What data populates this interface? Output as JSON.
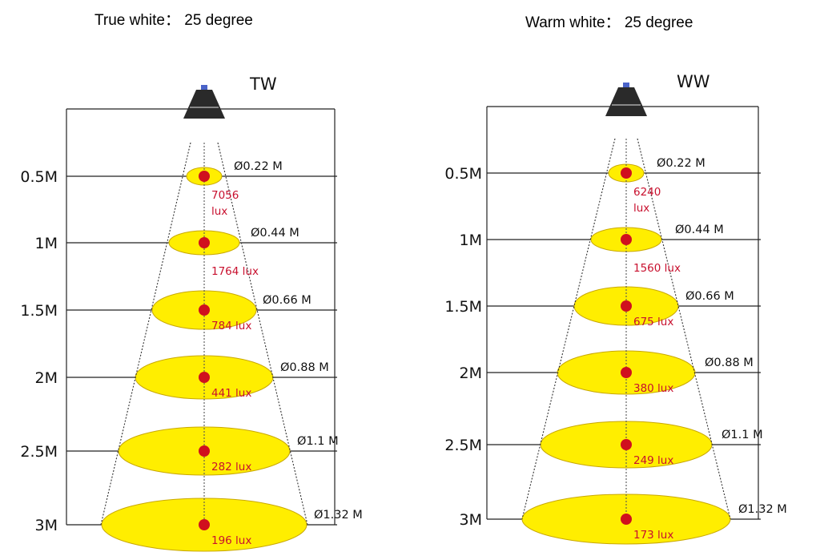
{
  "panels": [
    {
      "id": "tw",
      "title": "True white： 25 degree",
      "code": "TW",
      "rows": [
        {
          "distance": "0.5M",
          "diameter": "Ø0.22 M",
          "lux": [
            "7056",
            "lux"
          ]
        },
        {
          "distance": "1M",
          "diameter": "Ø0.44 M",
          "lux": [
            "1764 lux"
          ]
        },
        {
          "distance": "1.5M",
          "diameter": "Ø0.66 M",
          "lux": [
            "784 lux"
          ]
        },
        {
          "distance": "2M",
          "diameter": "Ø0.88 M",
          "lux": [
            "441 lux"
          ]
        },
        {
          "distance": "2.5M",
          "diameter": "Ø1.1 M",
          "lux": [
            "282 lux"
          ]
        },
        {
          "distance": "3M",
          "diameter": "Ø1.32 M",
          "lux": [
            "196 lux"
          ]
        }
      ]
    },
    {
      "id": "ww",
      "title": "Warm white： 25 degree",
      "code": "WW",
      "rows": [
        {
          "distance": "0.5M",
          "diameter": "Ø0.22 M",
          "lux": [
            "6240",
            "lux"
          ]
        },
        {
          "distance": "1M",
          "diameter": "Ø0.44 M",
          "lux": [
            "1560 lux"
          ]
        },
        {
          "distance": "1.5M",
          "diameter": "Ø0.66 M",
          "lux": [
            "675 lux"
          ]
        },
        {
          "distance": "2M",
          "diameter": "Ø0.88 M",
          "lux": [
            "380 lux"
          ]
        },
        {
          "distance": "2.5M",
          "diameter": "Ø1.1 M",
          "lux": [
            "249 lux"
          ]
        },
        {
          "distance": "3M",
          "diameter": "Ø1.32 M",
          "lux": [
            "173 lux"
          ]
        }
      ]
    }
  ],
  "colors": {
    "spot_fill": "#ffee00",
    "spot_stroke": "#c9a800",
    "center_dot": "#d0101e",
    "lux_text": "#c8102e",
    "lamp": "#2a2a2a"
  },
  "icons": {
    "lamp": "lamp-icon"
  }
}
